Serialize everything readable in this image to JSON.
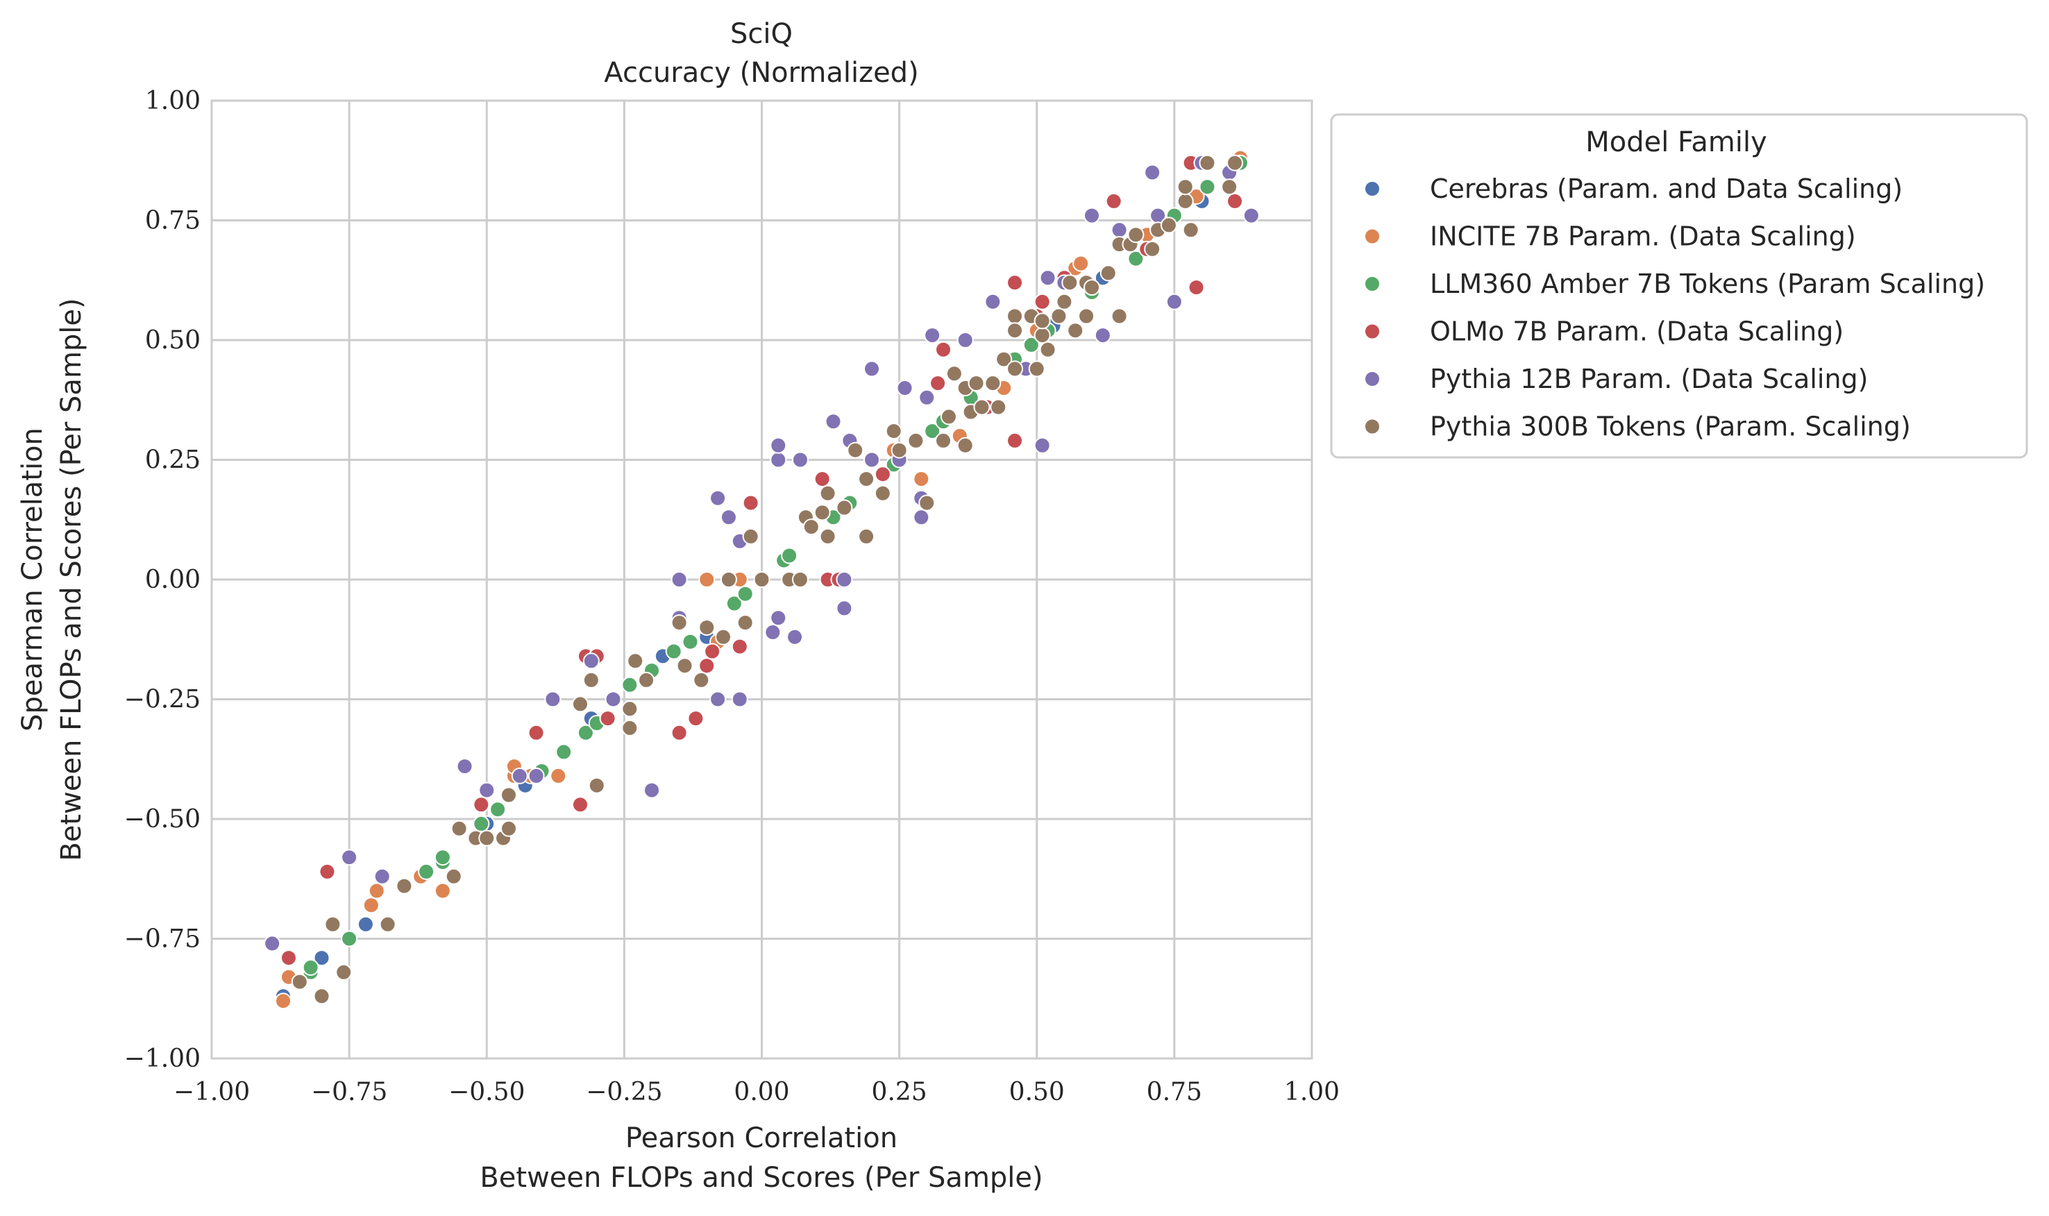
{
  "chart_data": {
    "type": "scatter",
    "title": "SciQ",
    "subtitle": "Accuracy (Normalized)",
    "xlabel_line1": "Pearson Correlation",
    "xlabel_line2": "Between FLOPs and Scores (Per Sample)",
    "ylabel_line1": "Spearman Correlation",
    "ylabel_line2": "Between FLOPs and Scores (Per Sample)",
    "xlim": [
      -1.0,
      1.0
    ],
    "ylim": [
      -1.0,
      1.0
    ],
    "xticks": [
      -1.0,
      -0.75,
      -0.5,
      -0.25,
      0.0,
      0.25,
      0.5,
      0.75,
      1.0
    ],
    "yticks": [
      -1.0,
      -0.75,
      -0.5,
      -0.25,
      0.0,
      0.25,
      0.5,
      0.75,
      1.0
    ],
    "xtick_labels": [
      "−1.00",
      "−0.75",
      "−0.50",
      "−0.25",
      "0.00",
      "0.25",
      "0.50",
      "0.75",
      "1.00"
    ],
    "ytick_labels": [
      "−1.00",
      "−0.75",
      "−0.50",
      "−0.25",
      "0.00",
      "0.25",
      "0.50",
      "0.75",
      "1.00"
    ],
    "grid": true,
    "legend": {
      "title": "Model Family",
      "placement": "outside-right-top"
    },
    "series": [
      {
        "name": "Cerebras (Param. and Data Scaling)",
        "color": "#4c72b0",
        "points": [
          [
            -0.87,
            -0.87
          ],
          [
            -0.8,
            -0.79
          ],
          [
            -0.72,
            -0.72
          ],
          [
            -0.58,
            -0.58
          ],
          [
            -0.5,
            -0.51
          ],
          [
            -0.43,
            -0.43
          ],
          [
            -0.31,
            -0.29
          ],
          [
            -0.18,
            -0.16
          ],
          [
            -0.1,
            -0.12
          ],
          [
            0.46,
            0.44
          ],
          [
            0.53,
            0.53
          ],
          [
            0.62,
            0.63
          ],
          [
            0.72,
            0.73
          ],
          [
            0.8,
            0.79
          ]
        ]
      },
      {
        "name": "INCITE 7B Param. (Data Scaling)",
        "color": "#dd8452",
        "points": [
          [
            -0.87,
            -0.88
          ],
          [
            -0.86,
            -0.83
          ],
          [
            -0.71,
            -0.68
          ],
          [
            -0.7,
            -0.65
          ],
          [
            -0.62,
            -0.62
          ],
          [
            -0.58,
            -0.65
          ],
          [
            -0.45,
            -0.41
          ],
          [
            -0.45,
            -0.39
          ],
          [
            -0.42,
            -0.41
          ],
          [
            -0.37,
            -0.41
          ],
          [
            -0.1,
            0.0
          ],
          [
            -0.08,
            -0.13
          ],
          [
            -0.04,
            0.0
          ],
          [
            0.24,
            0.27
          ],
          [
            0.29,
            0.21
          ],
          [
            0.36,
            0.3
          ],
          [
            0.44,
            0.4
          ],
          [
            0.5,
            0.52
          ],
          [
            0.57,
            0.65
          ],
          [
            0.58,
            0.66
          ],
          [
            0.67,
            0.7
          ],
          [
            0.7,
            0.72
          ],
          [
            0.79,
            0.8
          ],
          [
            0.86,
            0.87
          ],
          [
            0.87,
            0.88
          ]
        ]
      },
      {
        "name": "LLM360 Amber 7B Tokens (Param Scaling)",
        "color": "#55a868",
        "points": [
          [
            -0.82,
            -0.82
          ],
          [
            -0.82,
            -0.81
          ],
          [
            -0.75,
            -0.75
          ],
          [
            -0.61,
            -0.61
          ],
          [
            -0.58,
            -0.59
          ],
          [
            -0.58,
            -0.58
          ],
          [
            -0.51,
            -0.51
          ],
          [
            -0.48,
            -0.48
          ],
          [
            -0.4,
            -0.4
          ],
          [
            -0.36,
            -0.36
          ],
          [
            -0.32,
            -0.32
          ],
          [
            -0.3,
            -0.3
          ],
          [
            -0.24,
            -0.22
          ],
          [
            -0.2,
            -0.19
          ],
          [
            -0.16,
            -0.15
          ],
          [
            -0.13,
            -0.13
          ],
          [
            -0.05,
            -0.05
          ],
          [
            -0.03,
            -0.03
          ],
          [
            0.0,
            0.0
          ],
          [
            0.04,
            0.04
          ],
          [
            0.05,
            0.05
          ],
          [
            0.13,
            0.13
          ],
          [
            0.16,
            0.16
          ],
          [
            0.24,
            0.24
          ],
          [
            0.31,
            0.31
          ],
          [
            0.33,
            0.33
          ],
          [
            0.38,
            0.38
          ],
          [
            0.46,
            0.46
          ],
          [
            0.49,
            0.49
          ],
          [
            0.52,
            0.52
          ],
          [
            0.6,
            0.6
          ],
          [
            0.68,
            0.67
          ],
          [
            0.75,
            0.76
          ],
          [
            0.81,
            0.82
          ],
          [
            0.87,
            0.87
          ]
        ]
      },
      {
        "name": "OLMo 7B Param. (Data Scaling)",
        "color": "#c44e52",
        "points": [
          [
            -0.86,
            -0.79
          ],
          [
            -0.79,
            -0.61
          ],
          [
            -0.51,
            -0.47
          ],
          [
            -0.41,
            -0.32
          ],
          [
            -0.33,
            -0.47
          ],
          [
            -0.32,
            -0.16
          ],
          [
            -0.3,
            -0.16
          ],
          [
            -0.28,
            -0.29
          ],
          [
            -0.15,
            -0.32
          ],
          [
            -0.12,
            -0.29
          ],
          [
            -0.1,
            -0.18
          ],
          [
            -0.09,
            -0.15
          ],
          [
            -0.04,
            -0.14
          ],
          [
            -0.02,
            0.16
          ],
          [
            0.11,
            0.21
          ],
          [
            0.12,
            0.0
          ],
          [
            0.14,
            0.0
          ],
          [
            0.22,
            0.22
          ],
          [
            0.28,
            0.29
          ],
          [
            0.32,
            0.41
          ],
          [
            0.33,
            0.48
          ],
          [
            0.41,
            0.36
          ],
          [
            0.46,
            0.29
          ],
          [
            0.46,
            0.62
          ],
          [
            0.5,
            0.55
          ],
          [
            0.51,
            0.58
          ],
          [
            0.55,
            0.63
          ],
          [
            0.64,
            0.79
          ],
          [
            0.7,
            0.69
          ],
          [
            0.78,
            0.87
          ],
          [
            0.79,
            0.61
          ],
          [
            0.86,
            0.79
          ]
        ]
      },
      {
        "name": "Pythia 12B Param. (Data Scaling)",
        "color": "#8172b3",
        "points": [
          [
            -0.89,
            -0.76
          ],
          [
            -0.84,
            -0.84
          ],
          [
            -0.75,
            -0.58
          ],
          [
            -0.69,
            -0.62
          ],
          [
            -0.54,
            -0.39
          ],
          [
            -0.5,
            -0.44
          ],
          [
            -0.44,
            -0.41
          ],
          [
            -0.41,
            -0.41
          ],
          [
            -0.38,
            -0.25
          ],
          [
            -0.31,
            -0.17
          ],
          [
            -0.27,
            -0.25
          ],
          [
            -0.2,
            -0.44
          ],
          [
            -0.15,
            -0.08
          ],
          [
            -0.15,
            0.0
          ],
          [
            -0.08,
            -0.25
          ],
          [
            -0.08,
            0.17
          ],
          [
            -0.06,
            0.13
          ],
          [
            -0.04,
            0.08
          ],
          [
            -0.04,
            -0.25
          ],
          [
            0.02,
            -0.11
          ],
          [
            0.03,
            0.25
          ],
          [
            0.03,
            0.28
          ],
          [
            0.03,
            -0.08
          ],
          [
            0.06,
            -0.12
          ],
          [
            0.07,
            0.25
          ],
          [
            0.13,
            0.33
          ],
          [
            0.15,
            0.0
          ],
          [
            0.15,
            -0.06
          ],
          [
            0.16,
            0.29
          ],
          [
            0.2,
            0.44
          ],
          [
            0.2,
            0.25
          ],
          [
            0.25,
            0.25
          ],
          [
            0.26,
            0.4
          ],
          [
            0.29,
            0.13
          ],
          [
            0.29,
            0.17
          ],
          [
            0.3,
            0.38
          ],
          [
            0.31,
            0.51
          ],
          [
            0.37,
            0.5
          ],
          [
            0.42,
            0.58
          ],
          [
            0.48,
            0.44
          ],
          [
            0.51,
            0.28
          ],
          [
            0.52,
            0.63
          ],
          [
            0.55,
            0.62
          ],
          [
            0.6,
            0.76
          ],
          [
            0.62,
            0.51
          ],
          [
            0.65,
            0.73
          ],
          [
            0.71,
            0.85
          ],
          [
            0.72,
            0.76
          ],
          [
            0.75,
            0.58
          ],
          [
            0.8,
            0.87
          ],
          [
            0.85,
            0.85
          ],
          [
            0.89,
            0.76
          ]
        ]
      },
      {
        "name": "Pythia 300B Tokens (Param. Scaling)",
        "color": "#937860",
        "points": [
          [
            -0.84,
            -0.84
          ],
          [
            -0.8,
            -0.87
          ],
          [
            -0.78,
            -0.72
          ],
          [
            -0.76,
            -0.82
          ],
          [
            -0.68,
            -0.72
          ],
          [
            -0.65,
            -0.64
          ],
          [
            -0.56,
            -0.62
          ],
          [
            -0.55,
            -0.52
          ],
          [
            -0.52,
            -0.54
          ],
          [
            -0.5,
            -0.54
          ],
          [
            -0.47,
            -0.54
          ],
          [
            -0.46,
            -0.52
          ],
          [
            -0.46,
            -0.45
          ],
          [
            -0.33,
            -0.26
          ],
          [
            -0.31,
            -0.21
          ],
          [
            -0.3,
            -0.43
          ],
          [
            -0.24,
            -0.27
          ],
          [
            -0.24,
            -0.31
          ],
          [
            -0.23,
            -0.17
          ],
          [
            -0.21,
            -0.21
          ],
          [
            -0.15,
            -0.09
          ],
          [
            -0.14,
            -0.18
          ],
          [
            -0.11,
            -0.21
          ],
          [
            -0.1,
            -0.1
          ],
          [
            -0.07,
            -0.12
          ],
          [
            -0.06,
            0.0
          ],
          [
            -0.03,
            -0.09
          ],
          [
            -0.02,
            0.09
          ],
          [
            0.0,
            0.0
          ],
          [
            0.05,
            0.0
          ],
          [
            0.07,
            0.0
          ],
          [
            0.08,
            0.13
          ],
          [
            0.09,
            0.11
          ],
          [
            0.11,
            0.14
          ],
          [
            0.12,
            0.18
          ],
          [
            0.12,
            0.09
          ],
          [
            0.15,
            0.15
          ],
          [
            0.17,
            0.27
          ],
          [
            0.19,
            0.09
          ],
          [
            0.19,
            0.21
          ],
          [
            0.22,
            0.18
          ],
          [
            0.24,
            0.31
          ],
          [
            0.25,
            0.27
          ],
          [
            0.28,
            0.29
          ],
          [
            0.3,
            0.16
          ],
          [
            0.33,
            0.29
          ],
          [
            0.34,
            0.34
          ],
          [
            0.35,
            0.43
          ],
          [
            0.37,
            0.28
          ],
          [
            0.37,
            0.4
          ],
          [
            0.38,
            0.35
          ],
          [
            0.39,
            0.41
          ],
          [
            0.4,
            0.36
          ],
          [
            0.42,
            0.41
          ],
          [
            0.43,
            0.36
          ],
          [
            0.44,
            0.46
          ],
          [
            0.46,
            0.55
          ],
          [
            0.46,
            0.52
          ],
          [
            0.46,
            0.44
          ],
          [
            0.49,
            0.55
          ],
          [
            0.5,
            0.44
          ],
          [
            0.51,
            0.51
          ],
          [
            0.51,
            0.54
          ],
          [
            0.52,
            0.48
          ],
          [
            0.54,
            0.55
          ],
          [
            0.55,
            0.58
          ],
          [
            0.56,
            0.62
          ],
          [
            0.57,
            0.52
          ],
          [
            0.59,
            0.62
          ],
          [
            0.59,
            0.55
          ],
          [
            0.6,
            0.61
          ],
          [
            0.63,
            0.64
          ],
          [
            0.65,
            0.55
          ],
          [
            0.65,
            0.7
          ],
          [
            0.67,
            0.7
          ],
          [
            0.68,
            0.72
          ],
          [
            0.71,
            0.69
          ],
          [
            0.72,
            0.73
          ],
          [
            0.74,
            0.74
          ],
          [
            0.77,
            0.79
          ],
          [
            0.77,
            0.82
          ],
          [
            0.78,
            0.73
          ],
          [
            0.81,
            0.87
          ],
          [
            0.85,
            0.82
          ],
          [
            0.86,
            0.87
          ]
        ]
      }
    ]
  }
}
